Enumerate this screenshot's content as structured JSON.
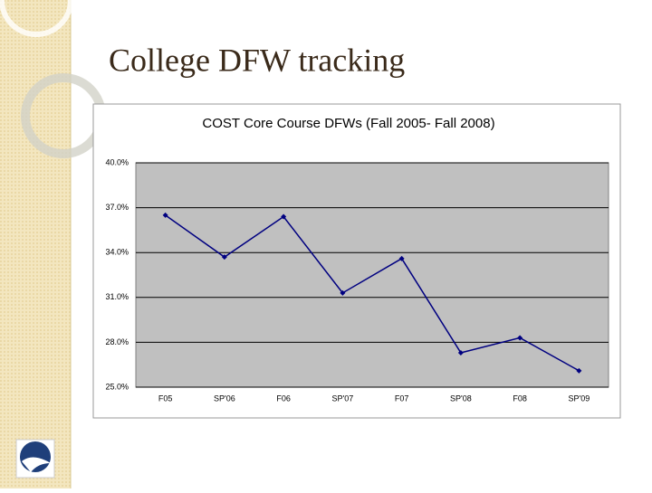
{
  "slide_title": "College DFW tracking",
  "chart_data": {
    "type": "line",
    "title": "COST Core Course DFWs (Fall 2005- Fall 2008)",
    "categories": [
      "F05",
      "SP'06",
      "F06",
      "SP'07",
      "F07",
      "SP'08",
      "F08",
      "SP'09"
    ],
    "values": [
      36.5,
      33.7,
      36.4,
      31.3,
      33.6,
      27.3,
      28.3,
      26.1
    ],
    "color": "#000080",
    "ylim": [
      25,
      40
    ],
    "yticks": [
      {
        "value": 25,
        "label": "25.0%"
      },
      {
        "value": 28,
        "label": "28.0%"
      },
      {
        "value": 31,
        "label": "31.0%"
      },
      {
        "value": 34,
        "label": "34.0%"
      },
      {
        "value": 37,
        "label": "37.0%"
      },
      {
        "value": 40,
        "label": "40.0%"
      }
    ],
    "grid": true
  }
}
